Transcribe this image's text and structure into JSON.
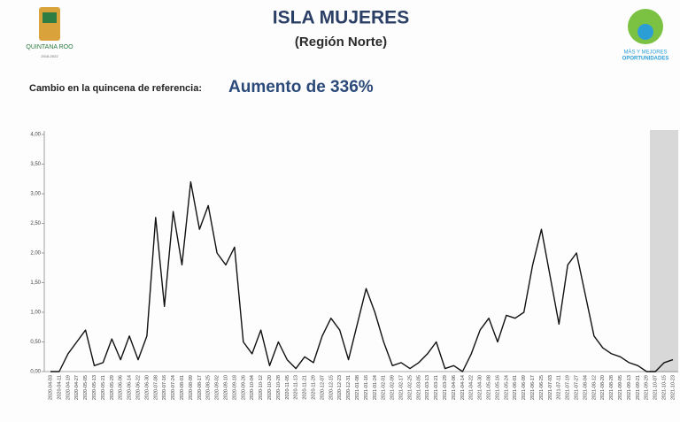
{
  "header": {
    "title": "ISLA MUJERES",
    "subtitle": "(Región Norte)",
    "change_label": "Cambio en la quincena de referencia:",
    "change_value": "Aumento de 336%",
    "logo_left": "QUINTANA ROO",
    "logo_left_years": "2016-2022",
    "logo_right_1": "MÁS Y MEJORES",
    "logo_right_2": "OPORTUNIDADES"
  },
  "chart_data": {
    "type": "line",
    "color": "#111111",
    "x": [
      "2020-04-03",
      "2020-04-11",
      "2020-04-19",
      "2020-04-27",
      "2020-05-05",
      "2020-05-13",
      "2020-05-21",
      "2020-05-29",
      "2020-06-06",
      "2020-06-14",
      "2020-06-22",
      "2020-06-30",
      "2020-07-08",
      "2020-07-16",
      "2020-07-24",
      "2020-08-01",
      "2020-08-09",
      "2020-08-17",
      "2020-08-25",
      "2020-09-02",
      "2020-09-10",
      "2020-09-18",
      "2020-09-26",
      "2020-10-04",
      "2020-10-12",
      "2020-10-20",
      "2020-10-28",
      "2020-11-05",
      "2020-11-13",
      "2020-11-21",
      "2020-11-29",
      "2020-12-07",
      "2020-12-15",
      "2020-12-23",
      "2020-12-31",
      "2021-01-08",
      "2021-01-16",
      "2021-01-24",
      "2021-02-01",
      "2021-02-09",
      "2021-02-17",
      "2021-02-25",
      "2021-03-05",
      "2021-03-13",
      "2021-03-21",
      "2021-03-29",
      "2021-04-06",
      "2021-04-14",
      "2021-04-22",
      "2021-04-30",
      "2021-05-08",
      "2021-05-16",
      "2021-05-24",
      "2021-06-01",
      "2021-06-09",
      "2021-06-17",
      "2021-06-25",
      "2021-07-03",
      "2021-07-11",
      "2021-07-19",
      "2021-07-27",
      "2021-08-04",
      "2021-08-12",
      "2021-08-20",
      "2021-08-28",
      "2021-09-05",
      "2021-09-13",
      "2021-09-21",
      "2021-09-29",
      "2021-10-07",
      "2021-10-15",
      "2021-10-23"
    ],
    "values": [
      0,
      0,
      0.3,
      0.5,
      0.7,
      0.1,
      0.15,
      0.55,
      0.2,
      0.6,
      0.2,
      0.6,
      2.6,
      1.1,
      2.7,
      1.8,
      3.2,
      2.4,
      2.8,
      2.0,
      1.8,
      2.1,
      0.5,
      0.3,
      0.7,
      0.1,
      0.5,
      0.2,
      0.05,
      0.25,
      0.15,
      0.6,
      0.9,
      0.7,
      0.2,
      0.8,
      1.4,
      1.0,
      0.5,
      0.1,
      0.15,
      0.05,
      0.15,
      0.3,
      0.5,
      0.05,
      0.1,
      0,
      0.3,
      0.7,
      0.9,
      0.5,
      0.95,
      0.9,
      1.0,
      1.8,
      2.4,
      1.6,
      0.8,
      1.8,
      2.0,
      1.3,
      0.6,
      0.4,
      0.3,
      0.25,
      0.15,
      0.1,
      0,
      0,
      0.15,
      0.2
    ],
    "ylim": [
      0,
      4
    ],
    "yticks": [
      {
        "value": 0,
        "label": "0,00"
      },
      {
        "value": 0.5,
        "label": "0,50"
      },
      {
        "value": 1,
        "label": "1,00"
      },
      {
        "value": 1.5,
        "label": "1,50"
      },
      {
        "value": 2,
        "label": "2,00"
      },
      {
        "value": 2.5,
        "label": "2,50"
      },
      {
        "value": 3,
        "label": "3,00"
      },
      {
        "value": 3.5,
        "label": "3,50"
      },
      {
        "value": 4,
        "label": "4,00"
      }
    ]
  }
}
